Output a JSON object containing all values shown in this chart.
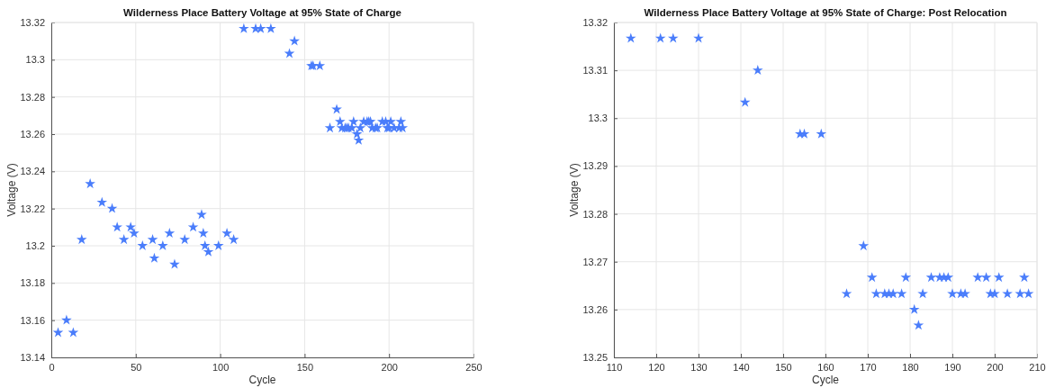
{
  "chart_data": [
    {
      "type": "scatter",
      "title": "Wilderness Place Battery Voltage at 95% State of Charge",
      "xlabel": "Cycle",
      "ylabel": "Voltage (V)",
      "marker": "star",
      "grid": true,
      "xlim": [
        0,
        250
      ],
      "xticks": [
        0,
        50,
        100,
        150,
        200,
        250
      ],
      "ylim": [
        13.14,
        13.32
      ],
      "yticks": [
        13.14,
        13.16,
        13.18,
        13.2,
        13.22,
        13.24,
        13.26,
        13.28,
        13.3,
        13.32
      ],
      "series": [
        {
          "color": "#4a7dfb",
          "x": [
            4,
            9,
            13,
            18,
            23,
            30,
            36,
            39,
            43,
            47,
            49,
            54,
            60,
            61,
            66,
            70,
            73,
            79,
            84,
            89,
            90,
            91,
            93,
            99,
            104,
            108,
            114,
            121,
            124,
            130,
            141,
            144,
            154,
            155,
            159,
            165,
            169,
            171,
            172,
            174,
            175,
            176,
            178,
            179,
            181,
            182,
            183,
            185,
            187,
            188,
            189,
            190,
            192,
            193,
            196,
            198,
            199,
            200,
            201,
            203,
            206,
            207,
            208
          ],
          "values": [
            13.1533,
            13.16,
            13.1533,
            13.2033,
            13.2333,
            13.2233,
            13.22,
            13.21,
            13.2033,
            13.21,
            13.2067,
            13.2,
            13.2033,
            13.1933,
            13.2,
            13.2067,
            13.19,
            13.2033,
            13.21,
            13.2167,
            13.2067,
            13.2,
            13.1967,
            13.2,
            13.2067,
            13.2033,
            13.3167,
            13.3167,
            13.3167,
            13.3167,
            13.3033,
            13.31,
            13.2967,
            13.2967,
            13.2967,
            13.2633,
            13.2733,
            13.2667,
            13.2633,
            13.2633,
            13.2633,
            13.2633,
            13.2633,
            13.2667,
            13.26,
            13.2567,
            13.2633,
            13.2667,
            13.2667,
            13.2667,
            13.2667,
            13.2633,
            13.2633,
            13.2633,
            13.2667,
            13.2667,
            13.2633,
            13.2633,
            13.2667,
            13.2633,
            13.2633,
            13.2667,
            13.2633
          ]
        }
      ]
    },
    {
      "type": "scatter",
      "title": "Wilderness Place Battery Voltage at 95% State of Charge: Post Relocation",
      "xlabel": "Cycle",
      "ylabel": "Voltage (V)",
      "marker": "star",
      "grid": true,
      "xlim": [
        110,
        210
      ],
      "xticks": [
        110,
        120,
        130,
        140,
        150,
        160,
        170,
        180,
        190,
        200,
        210
      ],
      "ylim": [
        13.25,
        13.32
      ],
      "yticks": [
        13.25,
        13.26,
        13.27,
        13.28,
        13.29,
        13.3,
        13.31,
        13.32
      ],
      "series": [
        {
          "color": "#4a7dfb",
          "x": [
            114,
            121,
            124,
            130,
            141,
            144,
            154,
            155,
            159,
            165,
            169,
            171,
            172,
            174,
            175,
            176,
            178,
            179,
            181,
            182,
            183,
            185,
            187,
            188,
            189,
            190,
            192,
            193,
            196,
            198,
            199,
            200,
            201,
            203,
            206,
            207,
            208
          ],
          "values": [
            13.3167,
            13.3167,
            13.3167,
            13.3167,
            13.3033,
            13.31,
            13.2967,
            13.2967,
            13.2967,
            13.2633,
            13.2733,
            13.2667,
            13.2633,
            13.2633,
            13.2633,
            13.2633,
            13.2633,
            13.2667,
            13.26,
            13.2567,
            13.2633,
            13.2667,
            13.2667,
            13.2667,
            13.2667,
            13.2633,
            13.2633,
            13.2633,
            13.2667,
            13.2667,
            13.2633,
            13.2633,
            13.2667,
            13.2633,
            13.2633,
            13.2667,
            13.2633
          ]
        }
      ]
    }
  ]
}
